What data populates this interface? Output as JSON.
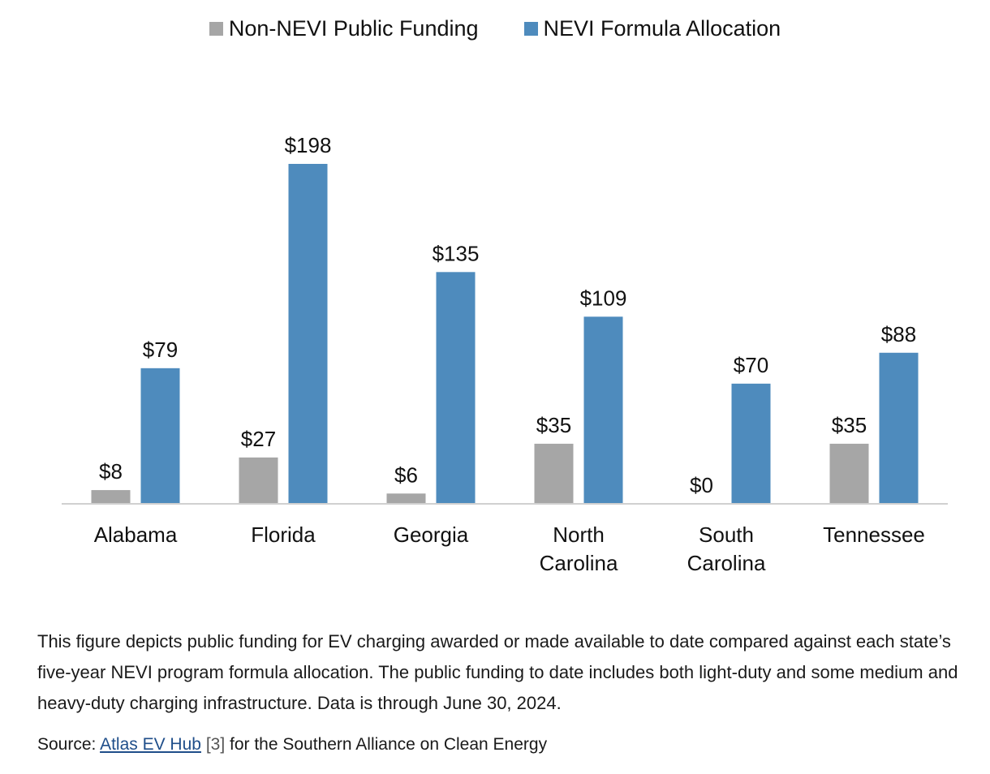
{
  "legend": {
    "non_nevi_label": "Non-NEVI Public Funding",
    "nevi_label": "NEVI Formula Allocation"
  },
  "colors": {
    "non_nevi": "#a6a6a6",
    "nevi": "#4e8bbd",
    "axis": "#d0d0d0"
  },
  "chart_data": {
    "type": "bar",
    "categories": [
      [
        "Alabama"
      ],
      [
        "Florida"
      ],
      [
        "Georgia"
      ],
      [
        "North",
        "Carolina"
      ],
      [
        "South",
        "Carolina"
      ],
      [
        "Tennessee"
      ]
    ],
    "series": [
      {
        "name": "Non-NEVI Public Funding",
        "values": [
          8,
          27,
          6,
          35,
          0,
          35
        ],
        "labels": [
          "$8",
          "$27",
          "$6",
          "$35",
          "$0",
          "$35"
        ]
      },
      {
        "name": "NEVI Formula Allocation",
        "values": [
          79,
          198,
          135,
          109,
          70,
          88
        ],
        "labels": [
          "$79",
          "$198",
          "$135",
          "$109",
          "$70",
          "$88"
        ]
      }
    ],
    "ylim": [
      0,
      198
    ],
    "grid": false,
    "legend_position": "top-center"
  },
  "caption": "This figure depicts public funding for EV charging awarded or made available to date compared against each state’s five-year NEVI program formula allocation. The public funding to date includes both light-duty and some medium and heavy-duty charging infrastructure. Data is through June 30, 2024.",
  "source": {
    "prefix": "Source: ",
    "link_text": "Atlas EV Hub",
    "ref": "[3]",
    "suffix": " for the Southern Alliance on Clean Energy"
  }
}
